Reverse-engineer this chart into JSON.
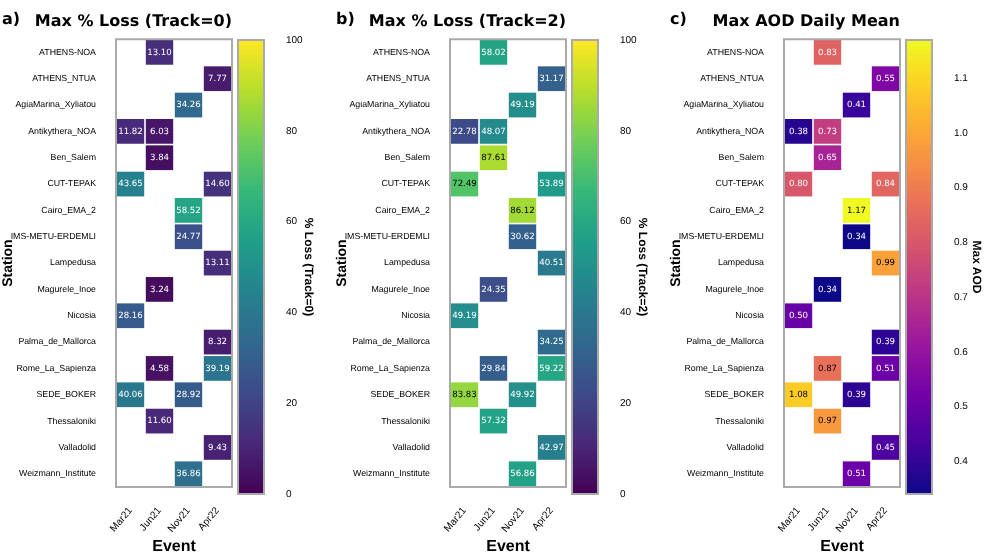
{
  "chart_data": [
    {
      "type": "heatmap",
      "title": "Max % Loss (Track=0)",
      "xlabel": "Event",
      "ylabel": "Station",
      "clabel": "% Loss (Track=0)",
      "annotations": [
        "a)"
      ],
      "categories": [
        "Mar21",
        "Jun21",
        "Nov21",
        "Apr22"
      ],
      "y_categories": [
        "ATHENS-NOA",
        "ATHENS_NTUA",
        "AgiaMarina_Xyliatou",
        "Antikythera_NOA",
        "Ben_Salem",
        "CUT-TEPAK",
        "Cairo_EMA_2",
        "IMS-METU-ERDEMLI",
        "Lampedusa",
        "Magurele_Inoe",
        "Nicosia",
        "Palma_de_Mallorca",
        "Rome_La_Sapienza",
        "SEDE_BOKER",
        "Thessaloniki",
        "Valladolid",
        "Weizmann_Institute"
      ],
      "cells": [
        [
          null,
          13.1,
          null,
          null
        ],
        [
          null,
          null,
          null,
          7.77
        ],
        [
          null,
          null,
          34.26,
          null
        ],
        [
          11.82,
          6.03,
          null,
          null
        ],
        [
          null,
          3.84,
          null,
          null
        ],
        [
          43.65,
          null,
          null,
          14.6
        ],
        [
          null,
          null,
          58.52,
          null
        ],
        [
          null,
          null,
          24.77,
          null
        ],
        [
          null,
          null,
          null,
          13.11
        ],
        [
          null,
          3.24,
          null,
          null
        ],
        [
          28.16,
          null,
          null,
          null
        ],
        [
          null,
          null,
          null,
          8.32
        ],
        [
          null,
          4.58,
          null,
          39.19
        ],
        [
          40.06,
          null,
          28.92,
          null
        ],
        [
          null,
          11.6,
          null,
          null
        ],
        [
          null,
          null,
          null,
          9.43
        ],
        [
          null,
          null,
          36.86,
          null
        ]
      ],
      "cell_labels": [
        [
          null,
          "13.10",
          null,
          null
        ],
        [
          null,
          null,
          null,
          "7.77"
        ],
        [
          null,
          null,
          "34.26",
          null
        ],
        [
          "11.82",
          "6.03",
          null,
          null
        ],
        [
          null,
          "3.84",
          null,
          null
        ],
        [
          "43.65",
          null,
          null,
          "14.60"
        ],
        [
          null,
          null,
          "58.52",
          null
        ],
        [
          null,
          null,
          "24.77",
          null
        ],
        [
          null,
          null,
          null,
          "13.11"
        ],
        [
          null,
          "3.24",
          null,
          null
        ],
        [
          "28.16",
          null,
          null,
          null
        ],
        [
          null,
          null,
          null,
          "8.32"
        ],
        [
          null,
          "4.58",
          null,
          "39.19"
        ],
        [
          "40.06",
          null,
          "28.92",
          null
        ],
        [
          null,
          "11.60",
          null,
          null
        ],
        [
          null,
          null,
          null,
          "9.43"
        ],
        [
          null,
          null,
          "36.86",
          null
        ]
      ],
      "clim": [
        0,
        100
      ],
      "cticks": [
        0,
        20,
        40,
        60,
        80,
        100
      ]
    },
    {
      "type": "heatmap",
      "title": "Max % Loss (Track=2)",
      "xlabel": "Event",
      "ylabel": "Station",
      "clabel": "% Loss (Track=2)",
      "annotations": [
        "b)"
      ],
      "categories": [
        "Mar21",
        "Jun21",
        "Nov21",
        "Apr22"
      ],
      "y_categories": [
        "ATHENS-NOA",
        "ATHENS_NTUA",
        "AgiaMarina_Xyliatou",
        "Antikythera_NOA",
        "Ben_Salem",
        "CUT-TEPAK",
        "Cairo_EMA_2",
        "IMS-METU-ERDEMLI",
        "Lampedusa",
        "Magurele_Inoe",
        "Nicosia",
        "Palma_de_Mallorca",
        "Rome_La_Sapienza",
        "SEDE_BOKER",
        "Thessaloniki",
        "Valladolid",
        "Weizmann_Institute"
      ],
      "cells": [
        [
          null,
          58.02,
          null,
          null
        ],
        [
          null,
          null,
          null,
          31.17
        ],
        [
          null,
          null,
          49.19,
          null
        ],
        [
          22.78,
          48.07,
          null,
          null
        ],
        [
          null,
          87.61,
          null,
          null
        ],
        [
          72.49,
          null,
          null,
          53.89
        ],
        [
          null,
          null,
          86.12,
          null
        ],
        [
          null,
          null,
          30.62,
          null
        ],
        [
          null,
          null,
          null,
          40.51
        ],
        [
          null,
          24.35,
          null,
          null
        ],
        [
          49.19,
          null,
          null,
          null
        ],
        [
          null,
          null,
          null,
          34.25
        ],
        [
          null,
          29.84,
          null,
          59.22
        ],
        [
          83.83,
          null,
          49.92,
          null
        ],
        [
          null,
          57.32,
          null,
          null
        ],
        [
          null,
          null,
          null,
          42.97
        ],
        [
          null,
          null,
          56.86,
          null
        ]
      ],
      "cell_labels": [
        [
          null,
          "58.02",
          null,
          null
        ],
        [
          null,
          null,
          null,
          "31.17"
        ],
        [
          null,
          null,
          "49.19",
          null
        ],
        [
          "22.78",
          "48.07",
          null,
          null
        ],
        [
          null,
          "87.61",
          null,
          null
        ],
        [
          "72.49",
          null,
          null,
          "53.89"
        ],
        [
          null,
          null,
          "86.12",
          null
        ],
        [
          null,
          null,
          "30.62",
          null
        ],
        [
          null,
          null,
          null,
          "40.51"
        ],
        [
          null,
          "24.35",
          null,
          null
        ],
        [
          "49.19",
          null,
          null,
          null
        ],
        [
          null,
          null,
          null,
          "34.25"
        ],
        [
          null,
          "29.84",
          null,
          "59.22"
        ],
        [
          "83.83",
          null,
          "49.92",
          null
        ],
        [
          null,
          "57.32",
          null,
          null
        ],
        [
          null,
          null,
          null,
          "42.97"
        ],
        [
          null,
          null,
          "56.86",
          null
        ]
      ],
      "clim": [
        0,
        100
      ],
      "cticks": [
        0,
        20,
        40,
        60,
        80,
        100
      ]
    },
    {
      "type": "heatmap",
      "title": "Max AOD Daily Mean",
      "xlabel": "Event",
      "ylabel": "Station",
      "clabel": "Max AOD",
      "annotations": [
        "c)"
      ],
      "categories": [
        "Mar21",
        "Jun21",
        "Nov21",
        "Apr22"
      ],
      "y_categories": [
        "ATHENS-NOA",
        "ATHENS_NTUA",
        "AgiaMarina_Xyliatou",
        "Antikythera_NOA",
        "Ben_Salem",
        "CUT-TEPAK",
        "Cairo_EMA_2",
        "IMS-METU-ERDEMLI",
        "Lampedusa",
        "Magurele_Inoe",
        "Nicosia",
        "Palma_de_Mallorca",
        "Rome_La_Sapienza",
        "SEDE_BOKER",
        "Thessaloniki",
        "Valladolid",
        "Weizmann_Institute"
      ],
      "cells": [
        [
          null,
          0.83,
          null,
          null
        ],
        [
          null,
          null,
          null,
          0.55
        ],
        [
          null,
          null,
          0.41,
          null
        ],
        [
          0.38,
          0.73,
          null,
          null
        ],
        [
          null,
          0.65,
          null,
          null
        ],
        [
          0.8,
          null,
          null,
          0.84
        ],
        [
          null,
          null,
          1.17,
          null
        ],
        [
          null,
          null,
          0.34,
          null
        ],
        [
          null,
          null,
          null,
          0.99
        ],
        [
          null,
          0.34,
          null,
          null
        ],
        [
          0.5,
          null,
          null,
          null
        ],
        [
          null,
          null,
          null,
          0.39
        ],
        [
          null,
          0.87,
          null,
          0.51
        ],
        [
          1.08,
          null,
          0.39,
          null
        ],
        [
          null,
          0.97,
          null,
          null
        ],
        [
          null,
          null,
          null,
          0.45
        ],
        [
          null,
          null,
          0.51,
          null
        ]
      ],
      "cell_labels": [
        [
          null,
          "0.83",
          null,
          null
        ],
        [
          null,
          null,
          null,
          "0.55"
        ],
        [
          null,
          null,
          "0.41",
          null
        ],
        [
          "0.38",
          "0.73",
          null,
          null
        ],
        [
          null,
          "0.65",
          null,
          null
        ],
        [
          "0.80",
          null,
          null,
          "0.84"
        ],
        [
          null,
          null,
          "1.17",
          null
        ],
        [
          null,
          null,
          "0.34",
          null
        ],
        [
          null,
          null,
          null,
          "0.99"
        ],
        [
          null,
          "0.34",
          null,
          null
        ],
        [
          "0.50",
          null,
          null,
          null
        ],
        [
          null,
          null,
          null,
          "0.39"
        ],
        [
          null,
          "0.87",
          null,
          "0.51"
        ],
        [
          "1.08",
          null,
          "0.39",
          null
        ],
        [
          null,
          "0.97",
          null,
          null
        ],
        [
          null,
          null,
          null,
          "0.45"
        ],
        [
          null,
          null,
          "0.51",
          null
        ]
      ],
      "clim": [
        0.34,
        1.17
      ],
      "cticks": [
        0.4,
        0.5,
        0.6,
        0.7,
        0.8,
        0.9,
        {
          "value": 1,
          "label": "1.0"
        },
        1.1
      ]
    }
  ]
}
